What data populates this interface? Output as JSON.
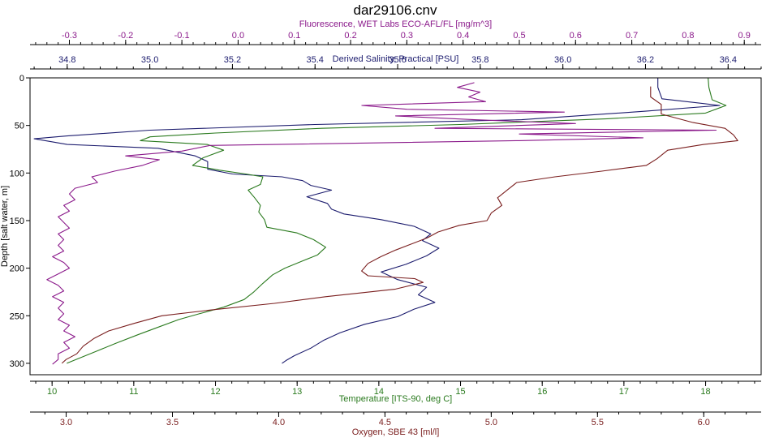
{
  "chart_data": {
    "type": "line",
    "title": "dar29106.cnv",
    "grid": false,
    "y_axis": {
      "label": "Depth [salt water, m]",
      "range": [
        0,
        312
      ],
      "ticks": [
        "0",
        "50",
        "100",
        "150",
        "200",
        "250",
        "300"
      ],
      "tick_values": [
        0,
        50,
        100,
        150,
        200,
        250,
        300
      ],
      "inverted": true
    },
    "x_axes": [
      {
        "key": "fluorescence",
        "label": "Fluorescence, WET Labs ECO-AFL/FL [mg/m^3]",
        "position": "top-outer",
        "color": "#8b1a8b",
        "range": [
          -0.37,
          0.93
        ],
        "tick_values": [
          -0.3,
          -0.2,
          -0.1,
          0,
          0.1,
          0.2,
          0.3,
          0.4,
          0.5,
          0.6,
          0.7,
          0.8,
          0.9
        ],
        "ticks": [
          "-0.3",
          "-0.2",
          "-0.1",
          "0.0",
          "0.1",
          "0.2",
          "0.3",
          "0.4",
          "0.5",
          "0.6",
          "0.7",
          "0.8",
          "0.9"
        ]
      },
      {
        "key": "salinity",
        "label": "Derived Salinity, Practical [PSU]",
        "position": "top-inner",
        "color": "#1c1c6e",
        "range": [
          34.71,
          36.48
        ],
        "tick_values": [
          34.8,
          35.0,
          35.2,
          35.4,
          35.6,
          35.8,
          36.0,
          36.2,
          36.4
        ],
        "ticks": [
          "34.8",
          "35.0",
          "35.2",
          "35.4",
          "35.6",
          "35.8",
          "36.0",
          "36.2",
          "36.4"
        ]
      },
      {
        "key": "temperature",
        "label": "Temperature [ITS-90, deg C]",
        "position": "bottom-inner",
        "color": "#2a7a1e",
        "range": [
          9.73,
          18.68
        ],
        "tick_values": [
          10,
          11,
          12,
          13,
          14,
          15,
          16,
          17,
          18
        ],
        "ticks": [
          "10",
          "11",
          "12",
          "13",
          "14",
          "15",
          "16",
          "17",
          "18"
        ]
      },
      {
        "key": "oxygen",
        "label": "Oxygen, SBE 43 [ml/l]",
        "position": "bottom-outer",
        "color": "#7a1e1e",
        "range": [
          2.83,
          6.27
        ],
        "tick_values": [
          3.0,
          3.5,
          4.0,
          4.5,
          5.0,
          5.5,
          6.0
        ],
        "ticks": [
          "3.0",
          "3.5",
          "4.0",
          "4.5",
          "5.0",
          "5.5",
          "6.0"
        ]
      }
    ],
    "series": [
      {
        "axis": "salinity",
        "color": "#1c1c6e",
        "points": [
          [
            36.23,
            0
          ],
          [
            36.23,
            10
          ],
          [
            36.24,
            22
          ],
          [
            36.38,
            29
          ],
          [
            36.2,
            35
          ],
          [
            35.9,
            44
          ],
          [
            35.4,
            49
          ],
          [
            35.0,
            55
          ],
          [
            34.8,
            61
          ],
          [
            34.72,
            64
          ],
          [
            34.8,
            70
          ],
          [
            35.02,
            74
          ],
          [
            35.11,
            82
          ],
          [
            35.14,
            88
          ],
          [
            35.14,
            96
          ],
          [
            35.2,
            101
          ],
          [
            35.32,
            104
          ],
          [
            35.37,
            108
          ],
          [
            35.39,
            113
          ],
          [
            35.44,
            118
          ],
          [
            35.38,
            125
          ],
          [
            35.43,
            132
          ],
          [
            35.44,
            138
          ],
          [
            35.47,
            143
          ],
          [
            35.56,
            149
          ],
          [
            35.64,
            156
          ],
          [
            35.68,
            164
          ],
          [
            35.66,
            171
          ],
          [
            35.7,
            179
          ],
          [
            35.67,
            187
          ],
          [
            35.62,
            196
          ],
          [
            35.56,
            204
          ],
          [
            35.6,
            212
          ],
          [
            35.67,
            220
          ],
          [
            35.65,
            228
          ],
          [
            35.69,
            236
          ],
          [
            35.64,
            243
          ],
          [
            35.6,
            251
          ],
          [
            35.52,
            259
          ],
          [
            35.46,
            268
          ],
          [
            35.42,
            276
          ],
          [
            35.39,
            284
          ],
          [
            35.35,
            292
          ],
          [
            35.33,
            297
          ],
          [
            35.32,
            300
          ]
        ]
      },
      {
        "axis": "temperature",
        "color": "#2a7a1e",
        "points": [
          [
            18.03,
            0
          ],
          [
            18.04,
            10
          ],
          [
            18.08,
            23
          ],
          [
            18.25,
            29
          ],
          [
            18.0,
            37
          ],
          [
            16.8,
            43
          ],
          [
            15.0,
            49
          ],
          [
            13.3,
            53
          ],
          [
            12.0,
            58
          ],
          [
            11.2,
            62
          ],
          [
            11.08,
            66
          ],
          [
            11.9,
            70
          ],
          [
            12.1,
            76
          ],
          [
            11.85,
            84
          ],
          [
            11.72,
            92
          ],
          [
            12.05,
            97
          ],
          [
            12.37,
            101
          ],
          [
            12.58,
            104
          ],
          [
            12.55,
            112
          ],
          [
            12.4,
            118
          ],
          [
            12.48,
            126
          ],
          [
            12.55,
            134
          ],
          [
            12.53,
            141
          ],
          [
            12.6,
            149
          ],
          [
            12.63,
            157
          ],
          [
            13.0,
            163
          ],
          [
            13.2,
            170
          ],
          [
            13.35,
            178
          ],
          [
            13.25,
            186
          ],
          [
            13.05,
            193
          ],
          [
            12.85,
            200
          ],
          [
            12.7,
            207
          ],
          [
            12.58,
            216
          ],
          [
            12.47,
            225
          ],
          [
            12.35,
            233
          ],
          [
            12.1,
            241
          ],
          [
            11.8,
            248
          ],
          [
            11.55,
            254
          ],
          [
            11.3,
            262
          ],
          [
            11.05,
            270
          ],
          [
            10.78,
            279
          ],
          [
            10.55,
            287
          ],
          [
            10.32,
            295
          ],
          [
            10.18,
            300
          ]
        ]
      },
      {
        "axis": "fluorescence",
        "color": "#8b1a8b",
        "points": [
          [
            0.42,
            5
          ],
          [
            0.39,
            10
          ],
          [
            0.43,
            15
          ],
          [
            0.41,
            20
          ],
          [
            0.44,
            25
          ],
          [
            0.22,
            29
          ],
          [
            0.3,
            33
          ],
          [
            0.58,
            36
          ],
          [
            0.28,
            40
          ],
          [
            0.42,
            44
          ],
          [
            0.6,
            48
          ],
          [
            0.35,
            53
          ],
          [
            0.85,
            55
          ],
          [
            0.5,
            59
          ],
          [
            0.72,
            63
          ],
          [
            0.5,
            66
          ],
          [
            -0.05,
            71
          ],
          [
            -0.1,
            77
          ],
          [
            -0.2,
            82
          ],
          [
            -0.14,
            86
          ],
          [
            -0.17,
            92
          ],
          [
            -0.22,
            98
          ],
          [
            -0.26,
            104
          ],
          [
            -0.25,
            110
          ],
          [
            -0.29,
            116
          ],
          [
            -0.3,
            122
          ],
          [
            -0.29,
            128
          ],
          [
            -0.31,
            134
          ],
          [
            -0.3,
            140
          ],
          [
            -0.32,
            146
          ],
          [
            -0.31,
            152
          ],
          [
            -0.3,
            158
          ],
          [
            -0.32,
            164
          ],
          [
            -0.31,
            170
          ],
          [
            -0.32,
            176
          ],
          [
            -0.31,
            182
          ],
          [
            -0.33,
            188
          ],
          [
            -0.31,
            194
          ],
          [
            -0.3,
            200
          ],
          [
            -0.32,
            206
          ],
          [
            -0.34,
            212
          ],
          [
            -0.32,
            218
          ],
          [
            -0.31,
            224
          ],
          [
            -0.33,
            230
          ],
          [
            -0.31,
            236
          ],
          [
            -0.32,
            242
          ],
          [
            -0.31,
            248
          ],
          [
            -0.32,
            254
          ],
          [
            -0.3,
            260
          ],
          [
            -0.31,
            266
          ],
          [
            -0.29,
            272
          ],
          [
            -0.31,
            278
          ],
          [
            -0.3,
            284
          ],
          [
            -0.32,
            290
          ],
          [
            -0.32,
            296
          ],
          [
            -0.33,
            301
          ]
        ]
      },
      {
        "axis": "oxygen",
        "color": "#7a1e1e",
        "points": [
          [
            5.75,
            9
          ],
          [
            5.75,
            20
          ],
          [
            5.8,
            28
          ],
          [
            5.8,
            38
          ],
          [
            5.95,
            47
          ],
          [
            6.1,
            53
          ],
          [
            6.14,
            60
          ],
          [
            6.16,
            66
          ],
          [
            6.0,
            70
          ],
          [
            5.83,
            76
          ],
          [
            5.78,
            85
          ],
          [
            5.73,
            92
          ],
          [
            5.52,
            98
          ],
          [
            5.3,
            104
          ],
          [
            5.12,
            110
          ],
          [
            5.08,
            117
          ],
          [
            5.03,
            126
          ],
          [
            5.05,
            134
          ],
          [
            5.0,
            142
          ],
          [
            4.98,
            150
          ],
          [
            4.85,
            155
          ],
          [
            4.75,
            162
          ],
          [
            4.7,
            168
          ],
          [
            4.62,
            175
          ],
          [
            4.55,
            181
          ],
          [
            4.48,
            188
          ],
          [
            4.42,
            195
          ],
          [
            4.39,
            203
          ],
          [
            4.42,
            208
          ],
          [
            4.64,
            211
          ],
          [
            4.68,
            215
          ],
          [
            4.55,
            222
          ],
          [
            4.22,
            230
          ],
          [
            3.98,
            237
          ],
          [
            3.68,
            244
          ],
          [
            3.45,
            250
          ],
          [
            3.32,
            258
          ],
          [
            3.2,
            266
          ],
          [
            3.13,
            274
          ],
          [
            3.08,
            282
          ],
          [
            3.05,
            290
          ],
          [
            3.0,
            296
          ],
          [
            2.98,
            300
          ]
        ]
      }
    ]
  }
}
